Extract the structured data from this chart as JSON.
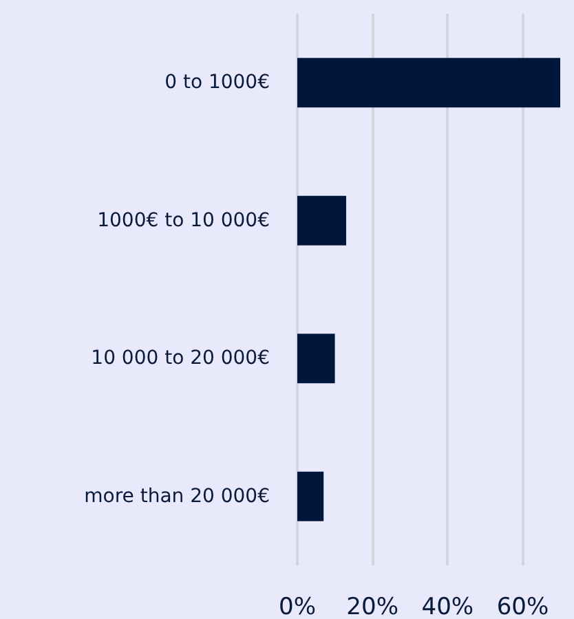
{
  "chart_data": {
    "type": "bar",
    "orientation": "horizontal",
    "categories": [
      "0 to 1000€",
      "1000€ to 10 000€",
      "10 000 to 20 000€",
      "more than 20 000€"
    ],
    "values": [
      70,
      13,
      10,
      7
    ],
    "color": "#00163a",
    "xlim": [
      0,
      70
    ],
    "xticks": [
      {
        "value": 0,
        "label": "0%"
      },
      {
        "value": 20,
        "label": "20%"
      },
      {
        "value": 40,
        "label": "40%"
      },
      {
        "value": 60,
        "label": "60%"
      }
    ],
    "grid": "x"
  }
}
